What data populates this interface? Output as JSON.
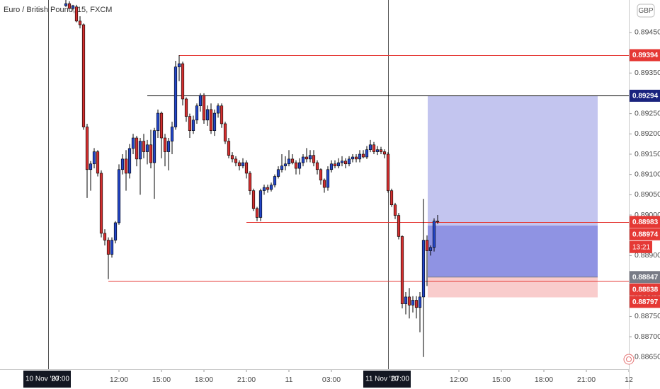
{
  "chart_data": {
    "type": "candlestick",
    "title": "Euro / British Pound, 15, FXCM",
    "currency": "GBP",
    "up_color": "#2346c8",
    "down_color": "#d32f2f",
    "border_color": "#000000",
    "xlim": [
      -18.6,
      159
    ],
    "ylim": [
      0.8862,
      0.8953
    ],
    "yticks": [
      {
        "value": 0.8945,
        "label": "0.89450"
      },
      {
        "value": 0.894,
        "label": "0.89400"
      },
      {
        "value": 0.8935,
        "label": "0.89350"
      },
      {
        "value": 0.893,
        "label": "0.89300"
      },
      {
        "value": 0.8925,
        "label": "0.89250"
      },
      {
        "value": 0.892,
        "label": "0.89200"
      },
      {
        "value": 0.8915,
        "label": "0.89150"
      },
      {
        "value": 0.891,
        "label": "0.89100"
      },
      {
        "value": 0.8905,
        "label": "0.89050"
      },
      {
        "value": 0.89,
        "label": "0.89000"
      },
      {
        "value": 0.8895,
        "label": "0.88950"
      },
      {
        "value": 0.889,
        "label": "0.88900"
      },
      {
        "value": 0.8885,
        "label": "0.88850"
      },
      {
        "value": 0.888,
        "label": "0.88800"
      },
      {
        "value": 0.8875,
        "label": "0.88750"
      },
      {
        "value": 0.887,
        "label": "0.88700"
      },
      {
        "value": 0.8865,
        "label": "0.88650"
      }
    ],
    "xticks": [
      {
        "value": 15,
        "label": "12:00"
      },
      {
        "value": 27,
        "label": "15:00"
      },
      {
        "value": 39,
        "label": "18:00"
      },
      {
        "value": 51,
        "label": "21:00"
      },
      {
        "value": 63,
        "label": "11"
      },
      {
        "value": 75,
        "label": "03:00"
      },
      {
        "value": 111,
        "label": "12:00"
      },
      {
        "value": 123,
        "label": "15:00"
      },
      {
        "value": 135,
        "label": "18:00"
      },
      {
        "value": 147,
        "label": "21:00"
      },
      {
        "value": 159,
        "label": "12"
      }
    ],
    "sessions": [
      {
        "value": -5,
        "date": "10 Nov '20",
        "time": "07:00"
      },
      {
        "value": 91,
        "date": "11 Nov '20",
        "time": "07:00"
      }
    ],
    "open": [
      0.89516,
      0.89521,
      0.89509,
      0.89513,
      0.89478,
      0.89469,
      0.89217,
      0.89112,
      0.89126,
      0.89156,
      0.89103,
      0.88955,
      0.88938,
      0.88903,
      0.88938,
      0.88981,
      0.89112,
      0.89138,
      0.89103,
      0.89164,
      0.8919,
      0.89138,
      0.89182,
      0.89156,
      0.89173,
      0.89129,
      0.89208,
      0.89251,
      0.8919,
      0.89156,
      0.89182,
      0.89217,
      0.89365,
      0.89373,
      0.89286,
      0.89243,
      0.89208,
      0.89234,
      0.89269,
      0.89295,
      0.89234,
      0.8926,
      0.89208,
      0.89251,
      0.89269,
      0.89225,
      0.89182,
      0.89147,
      0.89138,
      0.89129,
      0.89121,
      0.89129,
      0.89103,
      0.8906,
      0.89016,
      0.88994,
      0.8906,
      0.89068,
      0.89063,
      0.89074,
      0.89095,
      0.89112,
      0.89121,
      0.89126,
      0.89138,
      0.89129,
      0.89115,
      0.89129,
      0.89143,
      0.89138,
      0.89147,
      0.89129,
      0.89112,
      0.89086,
      0.89068,
      0.89112,
      0.89126,
      0.89121,
      0.89129,
      0.89133,
      0.89126,
      0.89138,
      0.89143,
      0.89138,
      0.8915,
      0.89143,
      0.89161,
      0.89173,
      0.89156,
      0.89161,
      0.89156,
      0.8915,
      0.8906,
      0.89025,
      0.88999,
      0.88947,
      0.88781,
      0.88798,
      0.88778,
      0.8879,
      0.88772,
      0.88798,
      0.88938,
      0.88912,
      0.8892,
      0.88985
    ],
    "high": [
      0.8953,
      0.89527,
      0.89518,
      0.89518,
      0.8949,
      0.89472,
      0.89225,
      0.89133,
      0.89165,
      0.8916,
      0.8911,
      0.88965,
      0.88945,
      0.88945,
      0.88985,
      0.89125,
      0.8915,
      0.8916,
      0.89175,
      0.892,
      0.89195,
      0.8919,
      0.892,
      0.89185,
      0.8921,
      0.89215,
      0.8926,
      0.89255,
      0.892,
      0.8919,
      0.8923,
      0.8938,
      0.89394,
      0.89378,
      0.8929,
      0.8925,
      0.89245,
      0.89275,
      0.893,
      0.893,
      0.8927,
      0.89275,
      0.8926,
      0.89275,
      0.89275,
      0.8923,
      0.8919,
      0.89155,
      0.89145,
      0.89135,
      0.8914,
      0.89135,
      0.89108,
      0.89065,
      0.8902,
      0.89065,
      0.89075,
      0.89075,
      0.8908,
      0.891,
      0.8912,
      0.8915,
      0.89145,
      0.8916,
      0.8915,
      0.89135,
      0.8914,
      0.8915,
      0.89165,
      0.8916,
      0.8916,
      0.89135,
      0.89115,
      0.8909,
      0.8912,
      0.89135,
      0.89135,
      0.8914,
      0.89145,
      0.8914,
      0.89145,
      0.8915,
      0.8915,
      0.8916,
      0.8916,
      0.8917,
      0.89185,
      0.8918,
      0.8917,
      0.89168,
      0.89162,
      0.89155,
      0.89065,
      0.8903,
      0.89005,
      0.8895,
      0.8881,
      0.8882,
      0.888,
      0.888,
      0.8881,
      0.8904,
      0.8895,
      0.88925,
      0.88992,
      0.89
    ],
    "low": [
      0.89513,
      0.89508,
      0.89504,
      0.89475,
      0.8946,
      0.8921,
      0.89042,
      0.8906,
      0.89115,
      0.89095,
      0.88945,
      0.88925,
      0.88842,
      0.88895,
      0.8893,
      0.88976,
      0.891,
      0.8906,
      0.8909,
      0.8915,
      0.8912,
      0.8905,
      0.8914,
      0.89125,
      0.89115,
      0.8904,
      0.8919,
      0.8914,
      0.8912,
      0.8911,
      0.8915,
      0.8921,
      0.8933,
      0.8927,
      0.8923,
      0.8919,
      0.892,
      0.89225,
      0.89255,
      0.89225,
      0.8922,
      0.892,
      0.89195,
      0.8924,
      0.89215,
      0.89175,
      0.8914,
      0.8913,
      0.8912,
      0.8911,
      0.89115,
      0.8909,
      0.8905,
      0.8901,
      0.88985,
      0.88985,
      0.8905,
      0.89055,
      0.89058,
      0.89068,
      0.8909,
      0.89105,
      0.8911,
      0.8912,
      0.89125,
      0.891,
      0.891,
      0.8912,
      0.8913,
      0.8913,
      0.8912,
      0.891,
      0.89075,
      0.89055,
      0.8906,
      0.89105,
      0.89115,
      0.89115,
      0.8912,
      0.89115,
      0.8912,
      0.8913,
      0.8913,
      0.8913,
      0.8914,
      0.89138,
      0.89155,
      0.8915,
      0.89148,
      0.8915,
      0.8914,
      0.89055,
      0.8902,
      0.8899,
      0.8894,
      0.8877,
      0.88755,
      0.88745,
      0.8876,
      0.88745,
      0.88711,
      0.8865,
      0.88825,
      0.889,
      0.8891,
      0.88978
    ],
    "close": [
      0.89521,
      0.89509,
      0.89516,
      0.89478,
      0.89469,
      0.89217,
      0.89112,
      0.89126,
      0.89156,
      0.89103,
      0.88955,
      0.88938,
      0.88903,
      0.88938,
      0.88981,
      0.89112,
      0.89138,
      0.89103,
      0.89164,
      0.8919,
      0.89138,
      0.89182,
      0.89156,
      0.89173,
      0.89129,
      0.89208,
      0.89251,
      0.8919,
      0.89156,
      0.89182,
      0.89217,
      0.89365,
      0.89373,
      0.89286,
      0.89243,
      0.89208,
      0.89234,
      0.89269,
      0.89295,
      0.89234,
      0.8926,
      0.89208,
      0.89251,
      0.89269,
      0.89225,
      0.89182,
      0.89147,
      0.89138,
      0.89129,
      0.89121,
      0.89129,
      0.89103,
      0.8906,
      0.89016,
      0.88994,
      0.8906,
      0.89068,
      0.89063,
      0.89074,
      0.89095,
      0.89112,
      0.89121,
      0.89126,
      0.89138,
      0.89129,
      0.89115,
      0.89129,
      0.89143,
      0.89138,
      0.89147,
      0.89129,
      0.89112,
      0.89086,
      0.89068,
      0.89112,
      0.89126,
      0.89121,
      0.89129,
      0.89133,
      0.89126,
      0.89138,
      0.89143,
      0.89138,
      0.8915,
      0.89143,
      0.89161,
      0.89173,
      0.89156,
      0.89161,
      0.89156,
      0.8915,
      0.8906,
      0.89025,
      0.88999,
      0.88947,
      0.88781,
      0.88798,
      0.88778,
      0.8879,
      0.88772,
      0.88798,
      0.88938,
      0.88912,
      0.8892,
      0.88985,
      0.88983
    ],
    "levels": [
      {
        "value": 0.89394,
        "start": 32,
        "color": "#e53935"
      },
      {
        "value": 0.89294,
        "start": 23,
        "color": "#000000"
      },
      {
        "value": 0.88983,
        "start": 51,
        "color": "#e53935"
      },
      {
        "value": 0.88838,
        "start": 12,
        "color": "#e53935"
      }
    ],
    "position": {
      "entry": 0.88847,
      "target": 0.89294,
      "stop": 0.88797,
      "current": 0.88974,
      "start": 102.2,
      "end": 150.2
    },
    "axis_labels": [
      {
        "value": 0.89394,
        "color": "#e53935"
      },
      {
        "value": 0.89294,
        "color": "#1a237e"
      },
      {
        "value": 0.88983,
        "color": "#e53935"
      },
      {
        "value": 0.88974,
        "color": "#e53935"
      },
      {
        "value": 0.88847,
        "color": "#787b86"
      },
      {
        "value": 0.88838,
        "color": "#e53935"
      },
      {
        "value": 0.88797,
        "color": "#e53935"
      }
    ],
    "countdown": {
      "label": "13:21",
      "after": 3
    }
  }
}
